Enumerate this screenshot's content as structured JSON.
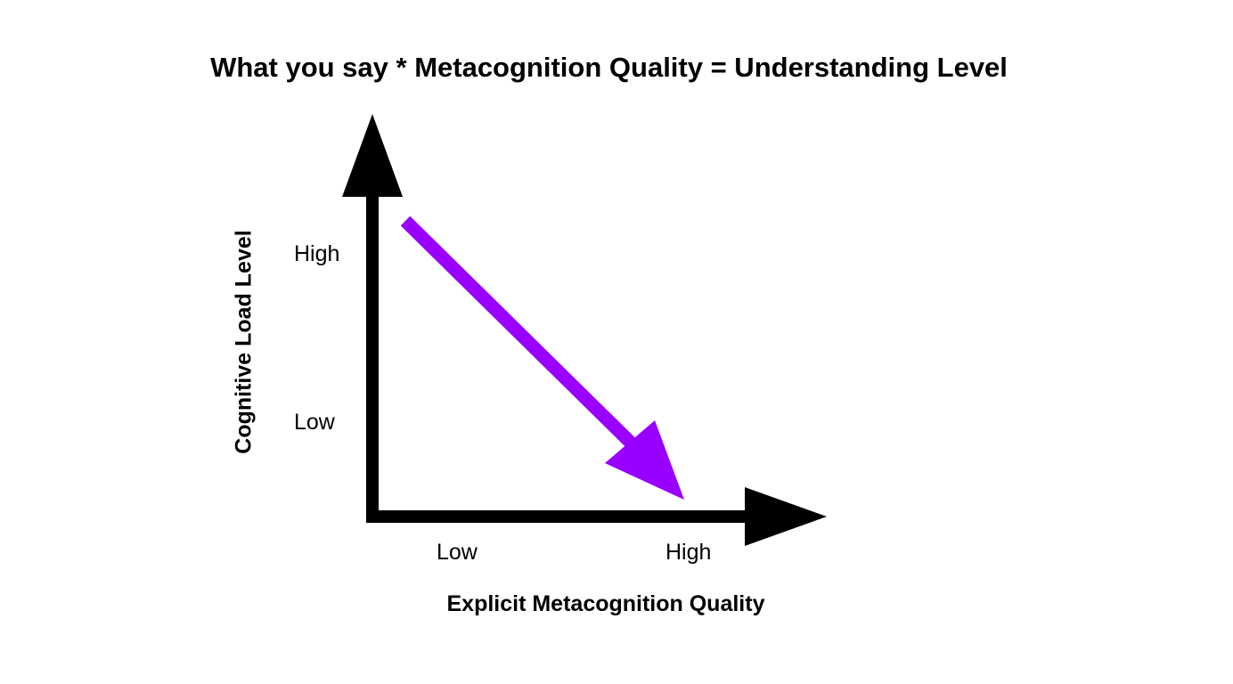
{
  "title": "What you say * Metacognition Quality = Understanding Level",
  "x_axis": {
    "label": "Explicit Metacognition Quality",
    "ticks": [
      "Low",
      "High"
    ]
  },
  "y_axis": {
    "label": "Cognitive Load Level",
    "ticks": [
      "High",
      "Low"
    ]
  },
  "colors": {
    "axes": "#000000",
    "trend_arrow": "#9900ff"
  }
}
